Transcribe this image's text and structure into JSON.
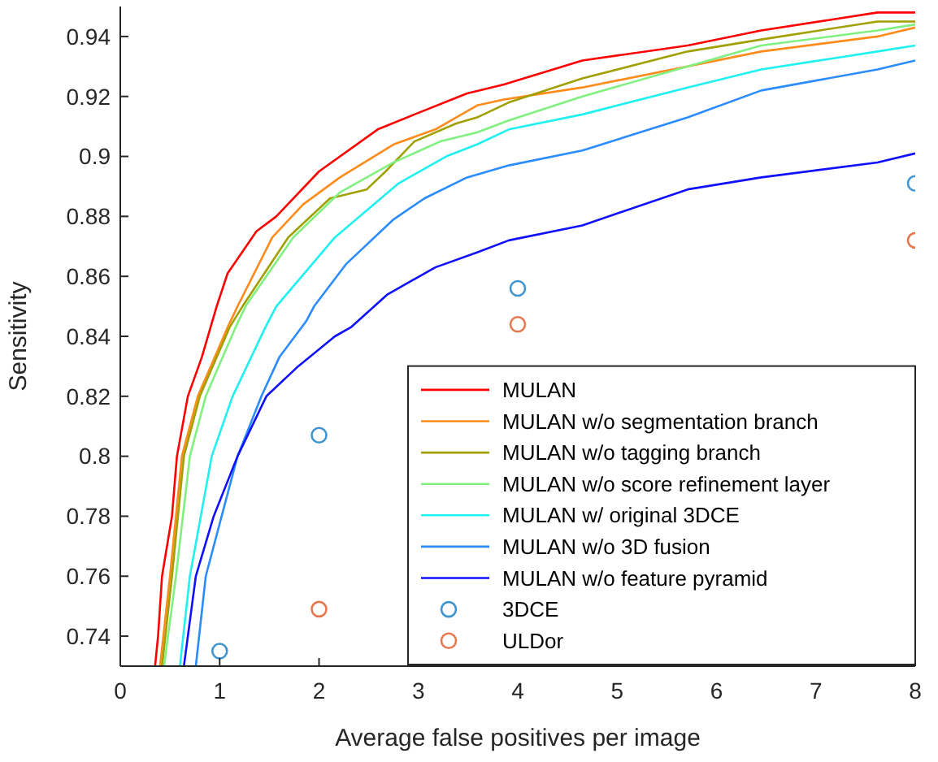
{
  "chart_data": {
    "type": "line",
    "xlabel": "Average false positives per image",
    "ylabel": "Sensitivity",
    "xlim": [
      0,
      8
    ],
    "xticks": [
      0,
      1,
      2,
      3,
      4,
      5,
      6,
      7,
      8
    ],
    "ylim": [
      0.73,
      0.95
    ],
    "yticks": [
      {
        "value": 0.74,
        "label": "0.74"
      },
      {
        "value": 0.76,
        "label": "0.76"
      },
      {
        "value": 0.78,
        "label": "0.78"
      },
      {
        "value": 0.8,
        "label": "0.8"
      },
      {
        "value": 0.82,
        "label": "0.82"
      },
      {
        "value": 0.84,
        "label": "0.84"
      },
      {
        "value": 0.86,
        "label": "0.86"
      },
      {
        "value": 0.88,
        "label": "0.88"
      },
      {
        "value": 0.9,
        "label": "0.9"
      },
      {
        "value": 0.92,
        "label": "0.92"
      },
      {
        "value": 0.94,
        "label": "0.94"
      }
    ],
    "grid": false,
    "legend": "bottom right",
    "line_style": "solid",
    "series": [
      {
        "name": "MULAN",
        "color": "#ff0000",
        "x": [
          0.35,
          0.38,
          0.42,
          0.52,
          0.57,
          0.68,
          0.82,
          0.97,
          1.08,
          1.37,
          1.57,
          2.0,
          2.59,
          2.96,
          3.49,
          3.86,
          4.65,
          5.71,
          6.45,
          7.62,
          8.0
        ],
        "values": [
          0.73,
          0.74,
          0.76,
          0.78,
          0.8,
          0.82,
          0.833,
          0.85,
          0.861,
          0.875,
          0.88,
          0.895,
          0.909,
          0.914,
          0.921,
          0.924,
          0.932,
          0.937,
          0.942,
          0.948,
          0.948
        ]
      },
      {
        "name": "MULAN w/o segmentation branch",
        "color": "#ff8c1a",
        "x": [
          0.4,
          0.5,
          0.62,
          0.78,
          1.08,
          1.18,
          1.53,
          1.84,
          2.21,
          2.75,
          3.17,
          3.59,
          3.86,
          4.65,
          5.71,
          6.45,
          7.62,
          8.0
        ],
        "values": [
          0.73,
          0.76,
          0.8,
          0.82,
          0.843,
          0.85,
          0.873,
          0.884,
          0.893,
          0.904,
          0.909,
          0.917,
          0.919,
          0.923,
          0.93,
          0.935,
          0.94,
          0.943
        ]
      },
      {
        "name": "MULAN w/o tagging branch",
        "color": "#a0a000",
        "x": [
          0.42,
          0.52,
          0.64,
          0.8,
          1.1,
          1.23,
          1.69,
          2.11,
          2.48,
          2.67,
          2.96,
          3.38,
          3.59,
          3.91,
          4.65,
          5.71,
          6.45,
          7.62,
          8.0
        ],
        "values": [
          0.73,
          0.76,
          0.8,
          0.82,
          0.843,
          0.85,
          0.873,
          0.886,
          0.889,
          0.895,
          0.905,
          0.911,
          0.913,
          0.918,
          0.926,
          0.935,
          0.939,
          0.945,
          0.945
        ]
      },
      {
        "name": "MULAN w/o score refinement layer",
        "color": "#80f080",
        "x": [
          0.44,
          0.56,
          0.7,
          0.86,
          1.16,
          1.26,
          1.74,
          2.21,
          2.75,
          3.22,
          3.59,
          3.91,
          4.65,
          5.71,
          6.45,
          7.62,
          8.0
        ],
        "values": [
          0.73,
          0.76,
          0.8,
          0.82,
          0.843,
          0.85,
          0.873,
          0.888,
          0.898,
          0.905,
          0.908,
          0.912,
          0.92,
          0.93,
          0.937,
          0.942,
          0.944
        ]
      },
      {
        "name": "MULAN w/ original 3DCE",
        "color": "#20f0f0",
        "x": [
          0.6,
          0.7,
          0.92,
          1.13,
          1.46,
          1.57,
          2.16,
          2.8,
          3.28,
          3.59,
          3.91,
          4.65,
          5.71,
          6.45,
          7.62,
          8.0
        ],
        "values": [
          0.73,
          0.76,
          0.8,
          0.82,
          0.843,
          0.85,
          0.873,
          0.891,
          0.9,
          0.904,
          0.909,
          0.914,
          0.923,
          0.929,
          0.935,
          0.937
        ]
      },
      {
        "name": "MULAN w/o 3D fusion",
        "color": "#2a8cff",
        "x": [
          0.76,
          0.86,
          1.02,
          1.18,
          1.42,
          1.6,
          1.87,
          1.95,
          2.27,
          2.75,
          3.06,
          3.49,
          3.91,
          4.65,
          5.71,
          6.45,
          7.62,
          8.0
        ],
        "values": [
          0.73,
          0.76,
          0.78,
          0.8,
          0.82,
          0.833,
          0.845,
          0.85,
          0.864,
          0.879,
          0.886,
          0.893,
          0.897,
          0.902,
          0.913,
          0.922,
          0.929,
          0.932
        ]
      },
      {
        "name": "MULAN w/o feature pyramid",
        "color": "#1010ff",
        "x": [
          0.64,
          0.68,
          0.76,
          0.94,
          1.18,
          1.47,
          1.79,
          2.16,
          2.32,
          2.69,
          3.17,
          3.59,
          3.91,
          4.65,
          5.71,
          6.45,
          7.62,
          8.0
        ],
        "values": [
          0.73,
          0.74,
          0.76,
          0.78,
          0.8,
          0.82,
          0.83,
          0.84,
          0.843,
          0.854,
          0.863,
          0.868,
          0.872,
          0.877,
          0.889,
          0.893,
          0.898,
          0.901
        ]
      },
      {
        "name": "3DCE",
        "type": "scatter",
        "marker": "circle",
        "color": "#3f95cf",
        "x": [
          1,
          2,
          4,
          8
        ],
        "values": [
          0.735,
          0.807,
          0.856,
          0.891
        ]
      },
      {
        "name": "ULDor",
        "type": "scatter",
        "marker": "circle",
        "color": "#e5784f",
        "x": [
          2,
          4,
          8
        ],
        "values": [
          0.749,
          0.844,
          0.872
        ]
      }
    ]
  }
}
